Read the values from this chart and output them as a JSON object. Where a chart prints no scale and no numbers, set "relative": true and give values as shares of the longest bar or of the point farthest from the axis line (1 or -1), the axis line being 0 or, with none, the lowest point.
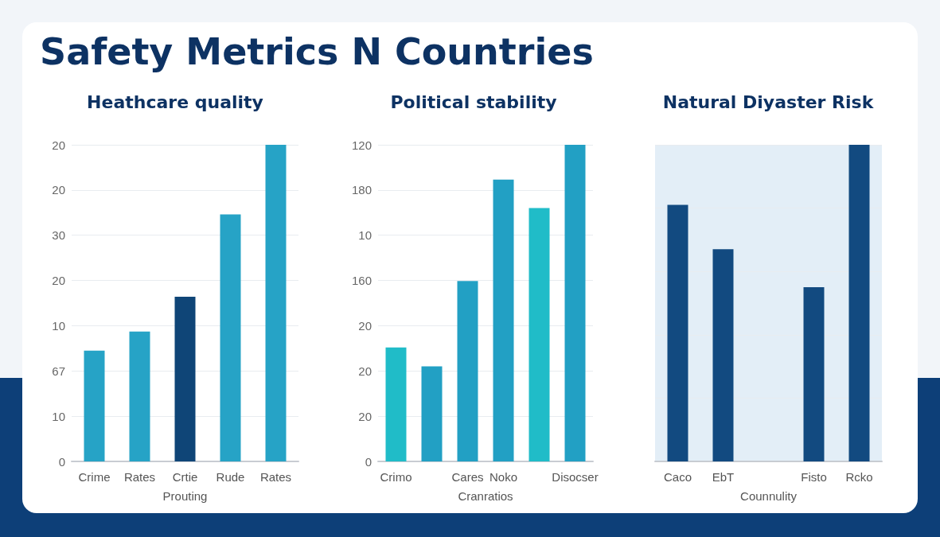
{
  "chart_data": [
    {
      "type": "bar",
      "title": "Safety Metrics N Countries",
      "subtitle": "Heathcare quality",
      "categories": [
        "Crime",
        "Rates",
        "Crtie",
        "Rude",
        "Rates"
      ],
      "xlabel": "Prouting",
      "relative": true,
      "annotations": [
        "20",
        "20",
        "30",
        "20",
        "10",
        "67",
        "10",
        "0"
      ],
      "values": [
        0.35,
        0.41,
        0.52,
        0.78,
        1
      ],
      "colors": [
        "#26a3c6",
        "#26a3c6",
        "#0f4577",
        "#26a3c6",
        "#26a3c6"
      ],
      "grid": "y"
    },
    {
      "type": "bar",
      "title": "Political stability",
      "categories": [
        "Crimo",
        null,
        "Cares",
        "Noko",
        null,
        "Disocser"
      ],
      "xlabel": "Cranratios",
      "relative": true,
      "annotations": [
        "120",
        "180",
        "10",
        "160",
        "20",
        "20",
        "20",
        "0"
      ],
      "values": [
        0.36,
        0.3,
        0.57,
        0.89,
        0.8,
        1
      ],
      "colors": [
        "#20bcc8",
        "#22a0c4",
        "#22a0c4",
        "#22a0c4",
        "#20bcc8",
        "#22a0c4"
      ],
      "grid": "y"
    },
    {
      "type": "bar",
      "title": "Natural Diyaster Risk",
      "categories": [
        "Caco",
        "EbT",
        null,
        "Fisto",
        "Rcko"
      ],
      "xlabel": "Counnulity",
      "relative": true,
      "values": [
        0.81,
        0.67,
        null,
        0.55,
        1
      ],
      "color": "#124a80",
      "grid": "y"
    }
  ]
}
